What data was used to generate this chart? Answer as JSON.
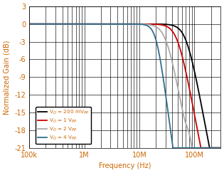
{
  "title": "",
  "xlabel": "Frequency (Hz)",
  "ylabel": "Normalized Gain (dB)",
  "xlim": [
    100000.0,
    300000000.0
  ],
  "ylim": [
    -21,
    3
  ],
  "yticks": [
    3,
    0,
    -3,
    -6,
    -9,
    -12,
    -15,
    -18,
    -21
  ],
  "xticks": [
    100000.0,
    1000000.0,
    10000000.0,
    100000000.0
  ],
  "xticklabels": [
    "100k",
    "1M",
    "10M",
    "100M"
  ],
  "background_color": "#ffffff",
  "series": [
    {
      "label": "V$_O$ = 200 mV$_{PP}$",
      "color": "#000000",
      "f3db": 72000000.0,
      "order": 2.5
    },
    {
      "label": "V$_O$ = 1 V$_{PP}$",
      "color": "#cc0000",
      "f3db": 50000000.0,
      "order": 2.5
    },
    {
      "label": "V$_O$ = 2 V$_{PP}$",
      "color": "#aaaaaa",
      "f3db": 32000000.0,
      "order": 2.5
    },
    {
      "label": "V$_O$ = 4 V$_{PP}$",
      "color": "#2e6e8e",
      "f3db": 20000000.0,
      "order": 3.5
    }
  ],
  "fontsize": 7,
  "linewidth": 1.3
}
